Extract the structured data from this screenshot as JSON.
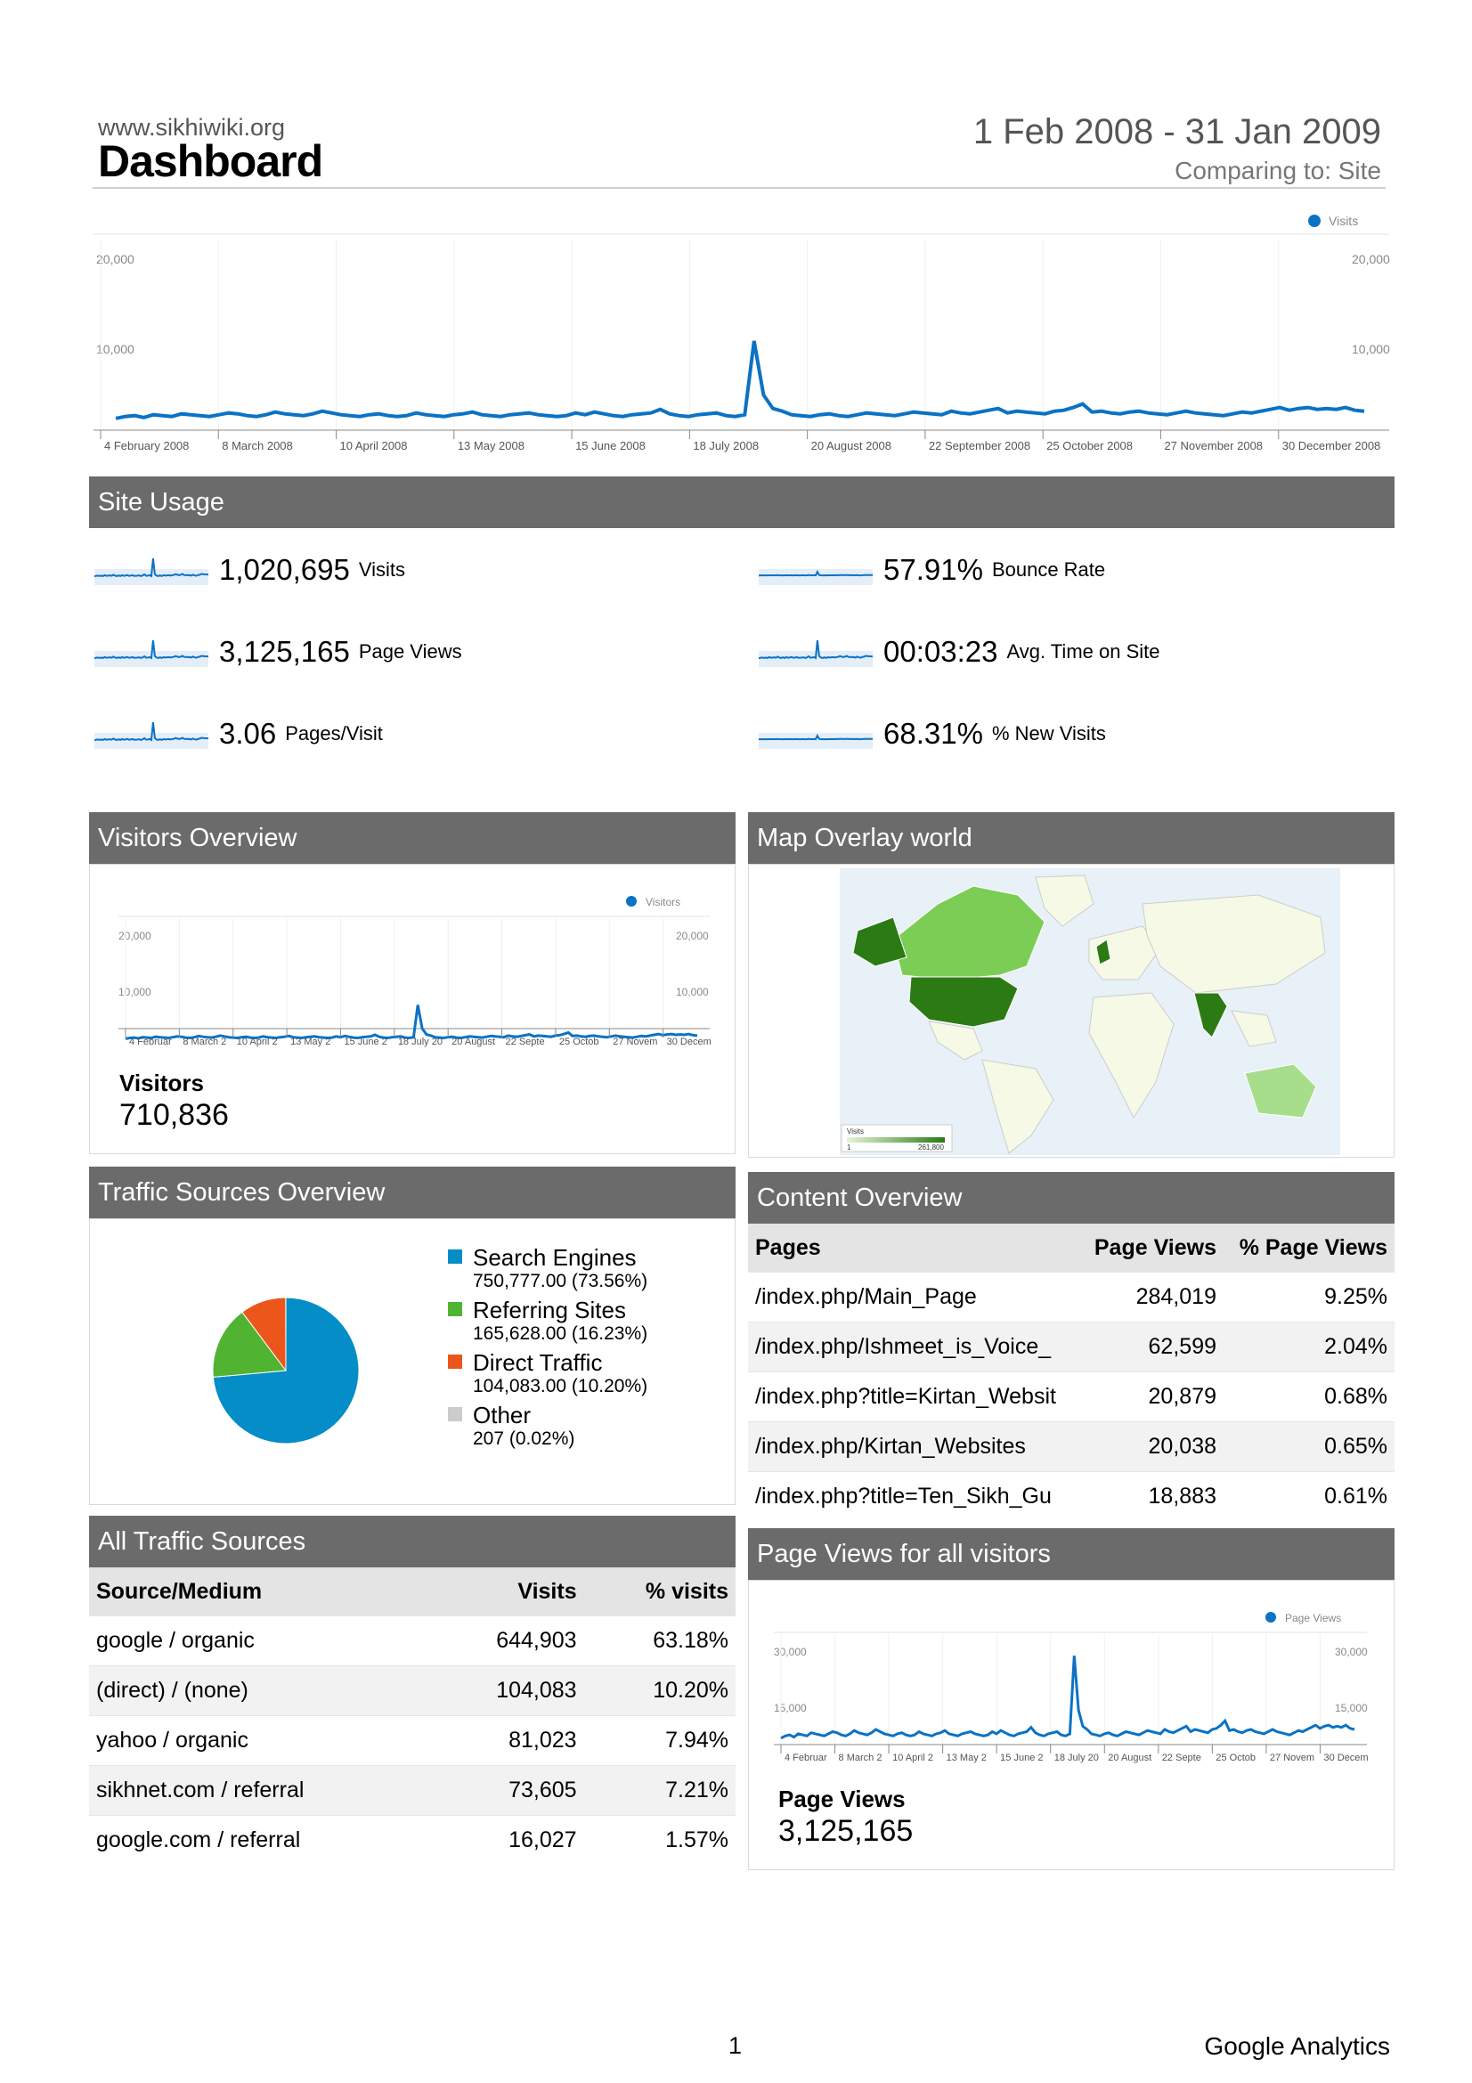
{
  "header": {
    "site": "www.sikhiwiki.org",
    "title": "Dashboard",
    "date_range": "1 Feb 2008 - 31 Jan 2009",
    "comparing": "Comparing to: Site"
  },
  "main_chart": {
    "legend": "Visits",
    "y_labels": [
      "20,000",
      "10,000"
    ],
    "x_labels": [
      "4 February 2008",
      "8 March 2008",
      "10 April 2008",
      "13 May 2008",
      "15 June 2008",
      "18 July 2008",
      "20 August 2008",
      "22 September 2008",
      "25 October 2008",
      "27 November 2008",
      "30 December 2008"
    ]
  },
  "site_usage": {
    "title": "Site Usage",
    "metrics": [
      {
        "value": "1,020,695",
        "label": "Visits"
      },
      {
        "value": "57.91%",
        "label": "Bounce Rate"
      },
      {
        "value": "3,125,165",
        "label": "Page Views"
      },
      {
        "value": "00:03:23",
        "label": "Avg. Time on Site"
      },
      {
        "value": "3.06",
        "label": "Pages/Visit"
      },
      {
        "value": "68.31%",
        "label": "% New Visits"
      }
    ]
  },
  "visitors_overview": {
    "title": "Visitors Overview",
    "legend": "Visitors",
    "y_labels": [
      "20,000",
      "10,000"
    ],
    "x_labels": [
      "4 Februar",
      "8 March 2",
      "10 April 2",
      "13 May 2",
      "15 June 2",
      "18 July 20",
      "20 August",
      "22 Septe",
      "25 Octob",
      "27 Novem",
      "30 Decem"
    ],
    "stat_label": "Visitors",
    "stat_value": "710,836"
  },
  "map_overlay": {
    "title": "Map Overlay world",
    "legend_title": "Visits",
    "legend_min": "1",
    "legend_max": "261,800"
  },
  "traffic_sources_overview": {
    "title": "Traffic Sources Overview",
    "items": [
      {
        "name": "Search Engines",
        "value": "750,777.00 (73.56%)",
        "color": "#058dc7"
      },
      {
        "name": "Referring Sites",
        "value": "165,628.00 (16.23%)",
        "color": "#50b432"
      },
      {
        "name": "Direct Traffic",
        "value": "104,083.00 (10.20%)",
        "color": "#ed561b"
      },
      {
        "name": "Other",
        "value": "207 (0.02%)",
        "color": "#cccccc"
      }
    ]
  },
  "content_overview": {
    "title": "Content Overview",
    "headers": [
      "Pages",
      "Page Views",
      "% Page Views"
    ],
    "rows": [
      [
        "/index.php/Main_Page",
        "284,019",
        "9.25%"
      ],
      [
        "/index.php/Ishmeet_is_Voice_",
        "62,599",
        "2.04%"
      ],
      [
        "/index.php?title=Kirtan_Websit",
        "20,879",
        "0.68%"
      ],
      [
        "/index.php/Kirtan_Websites",
        "20,038",
        "0.65%"
      ],
      [
        "/index.php?title=Ten_Sikh_Gu",
        "18,883",
        "0.61%"
      ]
    ]
  },
  "all_traffic_sources": {
    "title": "All Traffic Sources",
    "headers": [
      "Source/Medium",
      "Visits",
      "% visits"
    ],
    "rows": [
      [
        "google / organic",
        "644,903",
        "63.18%"
      ],
      [
        "(direct) / (none)",
        "104,083",
        "10.20%"
      ],
      [
        "yahoo / organic",
        "81,023",
        "7.94%"
      ],
      [
        "sikhnet.com / referral",
        "73,605",
        "7.21%"
      ],
      [
        "google.com / referral",
        "16,027",
        "1.57%"
      ]
    ]
  },
  "page_views_chart": {
    "title": "Page Views for all visitors",
    "legend": "Page Views",
    "y_labels": [
      "30,000",
      "15,000"
    ],
    "x_labels": [
      "4 Februar",
      "8 March 2",
      "10 April 2",
      "13 May 2",
      "15 June 2",
      "18 July 20",
      "20 August",
      "22 Septe",
      "25 Octob",
      "27 Novem",
      "30 Decem"
    ],
    "stat_label": "Page Views",
    "stat_value": "3,125,165"
  },
  "footer": {
    "page": "1",
    "brand": "Google Analytics"
  },
  "colors": {
    "line": "#0b72c4",
    "header_bar": "#6b6b6b",
    "map_dark": "#2c7a14",
    "map_light": "#7ccd55"
  },
  "chart_data": [
    {
      "type": "line",
      "title": "",
      "series": [
        {
          "name": "Visits",
          "values": [
            2400,
            2600,
            2700,
            2500,
            2800,
            2700,
            2600,
            2900,
            2800,
            2700,
            2600,
            2800,
            3000,
            2900,
            2700,
            2600,
            2800,
            3100,
            2900,
            2800,
            2700,
            2900,
            3200,
            3000,
            2800,
            2700,
            2600,
            2800,
            2900,
            2700,
            2600,
            2700,
            3000,
            2800,
            2700,
            2600,
            2800,
            2900,
            3100,
            2800,
            2700,
            2600,
            2800,
            2900,
            3000,
            2800,
            2700,
            2600,
            2700,
            3000,
            2800,
            3100,
            2900,
            2700,
            2600,
            2800,
            2900,
            3000,
            3400,
            2900,
            2700,
            2600,
            2800,
            2900,
            3000,
            2700,
            2600,
            2800,
            11000,
            5000,
            3500,
            3200,
            2800,
            2700,
            2600,
            2800,
            2900,
            2700,
            2600,
            2800,
            3000,
            2900,
            2800,
            2700,
            2900,
            3100,
            3000,
            2900,
            2800,
            3200,
            3000,
            2900,
            3100,
            3300,
            3500,
            3000,
            3200,
            3100,
            3000,
            2900,
            3200,
            3300,
            3600,
            4000,
            3100,
            3200,
            3000,
            2900,
            3100,
            3200,
            3000,
            2900,
            2800,
            3000,
            3200,
            3000,
            2900,
            2800,
            2700,
            2900,
            3100,
            3000,
            3200,
            3400,
            3600,
            3300,
            3500,
            3600,
            3400,
            3500,
            3400,
            3600,
            3300,
            3200
          ]
        }
      ],
      "x_ticks": [
        "4 February 2008",
        "8 March 2008",
        "10 April 2008",
        "13 May 2008",
        "15 June 2008",
        "18 July 2008",
        "20 August 2008",
        "22 September 2008",
        "25 October 2008",
        "27 November 2008",
        "30 December 2008"
      ],
      "ylim": [
        0,
        20000
      ],
      "y_ticks": [
        10000,
        20000
      ],
      "legend": "top-right",
      "grid": true
    },
    {
      "type": "pie",
      "labels": [
        "Search Engines",
        "Referring Sites",
        "Direct Traffic",
        "Other"
      ],
      "values": [
        750777,
        165628,
        104083,
        207
      ],
      "percents": [
        73.56,
        16.23,
        10.2,
        0.02
      ],
      "legend": "right"
    }
  ]
}
